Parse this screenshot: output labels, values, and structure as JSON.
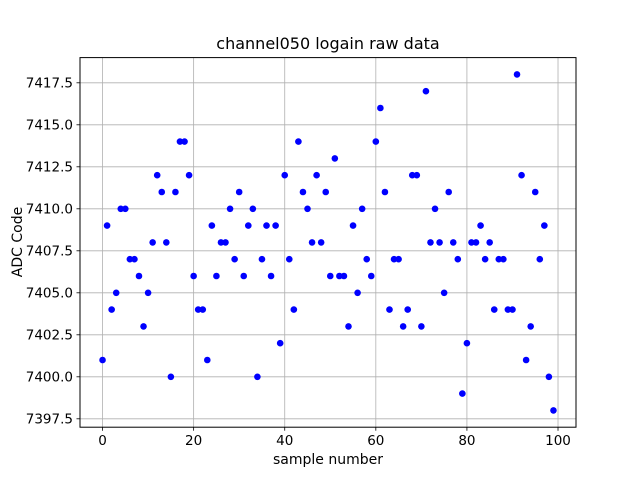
{
  "figure": {
    "background": "#ffffff"
  },
  "chart_data": {
    "type": "scatter",
    "title": "channel050 logain raw data",
    "xlabel": "sample number",
    "ylabel": "ADC Code",
    "xlim": [
      -4.95,
      103.95
    ],
    "ylim": [
      7397,
      7419
    ],
    "xticks": [
      0,
      20,
      40,
      60,
      80,
      100
    ],
    "yticks": [
      7397.5,
      7400.0,
      7402.5,
      7405.0,
      7407.5,
      7410.0,
      7412.5,
      7415.0,
      7417.5
    ],
    "grid": true,
    "legend_position": "none",
    "grid_color": "#b0b0b0",
    "spine_color": "#000000",
    "marker_color": "#0000ff",
    "marker_shape": "circle",
    "x": [
      0,
      1,
      2,
      3,
      4,
      5,
      6,
      7,
      8,
      9,
      10,
      11,
      12,
      13,
      14,
      15,
      16,
      17,
      18,
      19,
      20,
      21,
      22,
      23,
      24,
      25,
      26,
      27,
      28,
      29,
      30,
      31,
      32,
      33,
      34,
      35,
      36,
      37,
      38,
      39,
      40,
      41,
      42,
      43,
      44,
      45,
      46,
      47,
      48,
      49,
      50,
      51,
      52,
      53,
      54,
      55,
      56,
      57,
      58,
      59,
      60,
      61,
      62,
      63,
      64,
      65,
      66,
      67,
      68,
      69,
      70,
      71,
      72,
      73,
      74,
      75,
      76,
      77,
      78,
      79,
      80,
      81,
      82,
      83,
      84,
      85,
      86,
      87,
      88,
      89,
      90,
      91,
      92,
      93,
      94,
      95,
      96,
      97,
      98,
      99
    ],
    "y": [
      7401,
      7409,
      7404,
      7405,
      7410,
      7410,
      7407,
      7407,
      7406,
      7403,
      7405,
      7408,
      7412,
      7411,
      7408,
      7400,
      7411,
      7414,
      7414,
      7412,
      7406,
      7404,
      7404,
      7401,
      7409,
      7406,
      7408,
      7408,
      7410,
      7407,
      7411,
      7406,
      7409,
      7410,
      7400,
      7407,
      7409,
      7406,
      7409,
      7402,
      7412,
      7407,
      7404,
      7414,
      7411,
      7410,
      7408,
      7412,
      7408,
      7411,
      7406,
      7413,
      7406,
      7406,
      7403,
      7409,
      7405,
      7410,
      7407,
      7406,
      7414,
      7416,
      7411,
      7404,
      7407,
      7407,
      7403,
      7404,
      7412,
      7412,
      7403,
      7417,
      7408,
      7410,
      7408,
      7405,
      7411,
      7408,
      7407,
      7399,
      7402,
      7408,
      7408,
      7409,
      7407,
      7408,
      7404,
      7407,
      7407,
      7404,
      7404,
      7418,
      7412,
      7401,
      7403,
      7411,
      7407,
      7409,
      7400,
      7398
    ]
  }
}
